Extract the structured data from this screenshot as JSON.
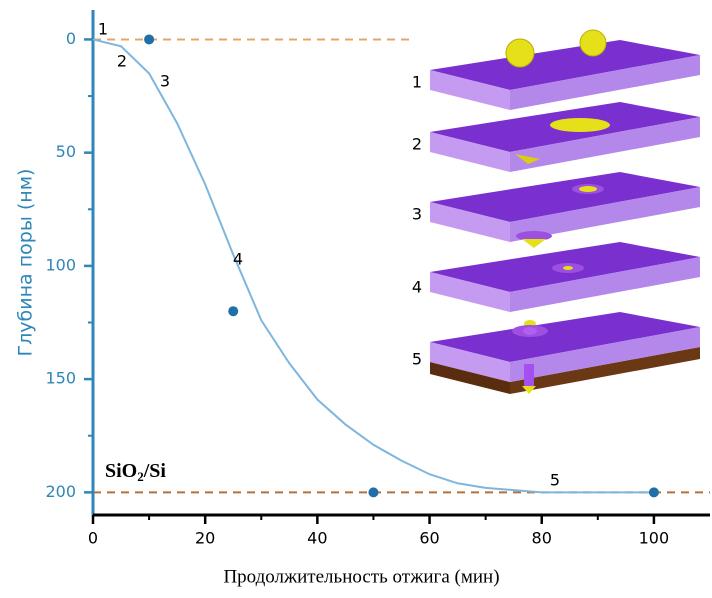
{
  "chart_data": {
    "type": "scatter",
    "xlabel": "Продолжительность отжига (мин)",
    "ylabel": "Глубина поры (нм)",
    "xlim": [
      0,
      110
    ],
    "ylim": [
      -13,
      210
    ],
    "y_inverted": true,
    "xticks": [
      0,
      20,
      40,
      60,
      80,
      100
    ],
    "xminorticks": [
      10,
      30,
      50,
      70,
      90
    ],
    "yticks": [
      0,
      50,
      100,
      150,
      200
    ],
    "yminorticks": [
      25,
      75,
      125,
      175
    ],
    "axis_color": "#2f86b8",
    "points": {
      "x": [
        10,
        25,
        50,
        100
      ],
      "y": [
        0,
        120,
        200,
        200
      ],
      "color": "#1f6fa8"
    },
    "fit": {
      "x": [
        0,
        5,
        10,
        15,
        20,
        25,
        30,
        35,
        40,
        45,
        50,
        55,
        60,
        65,
        70,
        75,
        80,
        100
      ],
      "y": [
        0,
        3,
        15,
        37,
        64,
        95,
        124,
        143,
        159,
        170,
        179,
        186,
        192,
        196,
        198,
        199,
        200,
        200
      ],
      "color": "#7fb6dd"
    },
    "hlines": [
      {
        "y": 0,
        "xmax": 57,
        "color": "#e8a468"
      },
      {
        "y": 200,
        "xmax": 110,
        "color": "#b5703a"
      }
    ],
    "point_labels": [
      "1",
      "2",
      "3",
      "4",
      "5"
    ],
    "substrate_label": [
      "SiO",
      "2",
      "/Si"
    ],
    "inset_labels": [
      "1",
      "2",
      "3",
      "4",
      "5"
    ]
  }
}
